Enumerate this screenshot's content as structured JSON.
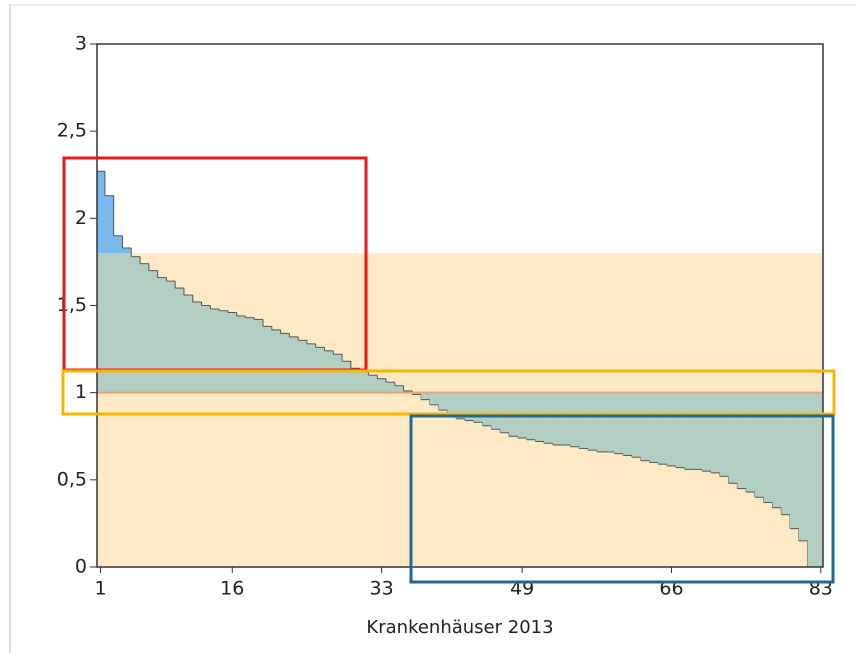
{
  "chart_data": {
    "type": "step",
    "x_label": "Krankenhäuser 2013",
    "categories": [
      1,
      2,
      3,
      4,
      5,
      6,
      7,
      8,
      9,
      10,
      11,
      12,
      13,
      14,
      15,
      16,
      17,
      18,
      19,
      20,
      21,
      22,
      23,
      24,
      25,
      26,
      27,
      28,
      29,
      30,
      31,
      32,
      33,
      34,
      35,
      36,
      37,
      38,
      39,
      40,
      41,
      42,
      43,
      44,
      45,
      46,
      47,
      48,
      49,
      50,
      51,
      52,
      53,
      54,
      55,
      56,
      57,
      58,
      59,
      60,
      61,
      62,
      63,
      64,
      65,
      66,
      67,
      68,
      69,
      70,
      71,
      72,
      73,
      74,
      75,
      76,
      77,
      78,
      79,
      80,
      81,
      82,
      83
    ],
    "values": [
      2.27,
      2.13,
      1.9,
      1.83,
      1.78,
      1.74,
      1.7,
      1.66,
      1.64,
      1.6,
      1.56,
      1.52,
      1.5,
      1.48,
      1.47,
      1.46,
      1.44,
      1.43,
      1.42,
      1.38,
      1.36,
      1.34,
      1.32,
      1.3,
      1.28,
      1.26,
      1.24,
      1.22,
      1.18,
      1.14,
      1.12,
      1.1,
      1.08,
      1.06,
      1.04,
      1.01,
      0.99,
      0.96,
      0.93,
      0.9,
      0.87,
      0.85,
      0.84,
      0.83,
      0.81,
      0.79,
      0.77,
      0.75,
      0.74,
      0.73,
      0.72,
      0.71,
      0.7,
      0.7,
      0.69,
      0.68,
      0.67,
      0.66,
      0.66,
      0.65,
      0.64,
      0.63,
      0.61,
      0.6,
      0.59,
      0.58,
      0.57,
      0.56,
      0.56,
      0.55,
      0.54,
      0.52,
      0.48,
      0.45,
      0.43,
      0.4,
      0.37,
      0.34,
      0.3,
      0.22,
      0.15,
      0,
      0
    ],
    "reference_line": 1,
    "band": [
      0,
      1.8
    ],
    "colors": {
      "band": "#fde9c4",
      "deviation": "#b3cfc3",
      "above_band": "#7ab8ee",
      "line": "#555555",
      "reference": "#e2a877"
    },
    "xlim": [
      0.6,
      83.25
    ],
    "ylim": [
      0,
      3
    ],
    "xticks": [
      1,
      16,
      33,
      49,
      66,
      83
    ],
    "yticks": [
      0,
      {
        "value": 0.5,
        "label": "0,5"
      },
      1,
      {
        "value": 1.5,
        "label": "1,5"
      },
      2,
      {
        "value": 2.5,
        "label": "2,5"
      },
      3
    ]
  }
}
